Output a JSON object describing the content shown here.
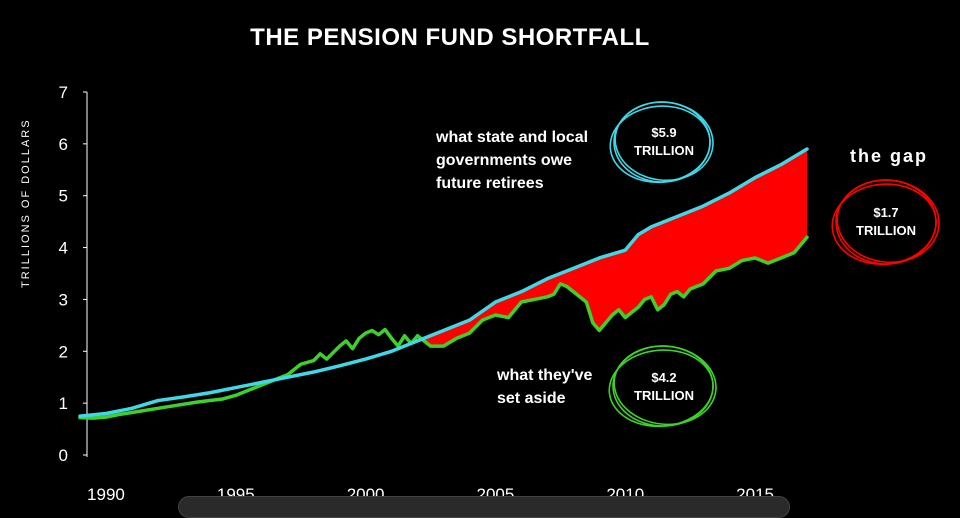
{
  "chart_data": {
    "type": "line",
    "title": "THE PENSION FUND SHORTFALL",
    "xlabel": "",
    "ylabel": "TRILLIONS OF DOLLARS",
    "xlim": [
      1989.0,
      2017.5
    ],
    "ylim": [
      0,
      7
    ],
    "x_ticks": [
      "1990",
      "1995",
      "2000",
      "2005",
      "2010",
      "2015"
    ],
    "y_ticks": [
      "0",
      "1",
      "2",
      "3",
      "4",
      "5",
      "6",
      "7"
    ],
    "grid": false,
    "colors": {
      "owed": "#3fd8e6",
      "set_aside": "#3fd12b",
      "gap": "#ff0000"
    },
    "series": [
      {
        "key": "owed",
        "x": [
          1989.0,
          1990.0,
          1991.0,
          1992.0,
          1993.0,
          1994.0,
          1995.0,
          1996.0,
          1997.0,
          1998.0,
          1999.0,
          2000.0,
          2001.0,
          2002.0,
          2003.0,
          2004.0,
          2005.0,
          2006.0,
          2007.0,
          2008.0,
          2009.0,
          2010.0,
          2010.5,
          2011.0,
          2012.0,
          2013.0,
          2014.0,
          2015.0,
          2016.0,
          2017.0
        ],
        "values": [
          0.75,
          0.8,
          0.9,
          1.05,
          1.12,
          1.2,
          1.3,
          1.4,
          1.5,
          1.6,
          1.72,
          1.85,
          2.0,
          2.2,
          2.4,
          2.6,
          2.95,
          3.15,
          3.4,
          3.6,
          3.8,
          3.95,
          4.25,
          4.4,
          4.6,
          4.8,
          5.05,
          5.35,
          5.6,
          5.9
        ]
      },
      {
        "key": "set_aside",
        "x": [
          1989.0,
          1989.5,
          1990.0,
          1990.5,
          1991.0,
          1992.0,
          1993.0,
          1993.5,
          1994.0,
          1994.5,
          1995.0,
          1995.5,
          1996.0,
          1996.5,
          1997.0,
          1997.5,
          1998.0,
          1998.25,
          1998.5,
          1999.0,
          1999.25,
          1999.5,
          1999.75,
          2000.0,
          2000.25,
          2000.5,
          2000.75,
          2001.0,
          2001.25,
          2001.5,
          2001.75,
          2002.0,
          2002.25,
          2002.5,
          2003.0,
          2003.5,
          2004.0,
          2004.5,
          2005.0,
          2005.5,
          2006.0,
          2006.5,
          2007.0,
          2007.25,
          2007.5,
          2007.75,
          2008.0,
          2008.25,
          2008.5,
          2008.75,
          2009.0,
          2009.25,
          2009.5,
          2009.75,
          2010.0,
          2010.25,
          2010.5,
          2010.75,
          2011.0,
          2011.25,
          2011.5,
          2011.75,
          2012.0,
          2012.25,
          2012.5,
          2013.0,
          2013.5,
          2014.0,
          2014.5,
          2015.0,
          2015.5,
          2016.0,
          2016.5,
          2017.0
        ],
        "values": [
          0.72,
          0.71,
          0.73,
          0.78,
          0.82,
          0.9,
          0.98,
          1.02,
          1.05,
          1.08,
          1.15,
          1.25,
          1.35,
          1.45,
          1.55,
          1.75,
          1.82,
          1.95,
          1.85,
          2.1,
          2.2,
          2.05,
          2.25,
          2.35,
          2.4,
          2.32,
          2.42,
          2.25,
          2.1,
          2.3,
          2.15,
          2.3,
          2.2,
          2.1,
          2.1,
          2.25,
          2.35,
          2.6,
          2.7,
          2.65,
          2.95,
          3.0,
          3.05,
          3.1,
          3.3,
          3.25,
          3.15,
          3.05,
          2.95,
          2.55,
          2.4,
          2.55,
          2.7,
          2.8,
          2.65,
          2.75,
          2.85,
          3.0,
          3.05,
          2.8,
          2.9,
          3.1,
          3.15,
          3.05,
          3.2,
          3.3,
          3.55,
          3.6,
          3.75,
          3.8,
          3.7,
          3.8,
          3.9,
          4.2
        ]
      }
    ],
    "gap_range": [
      2002.0,
      2017.0
    ],
    "annotations": {
      "owe_label": "what state and local governments owe future retirees",
      "owe_amount": "$5.9",
      "owe_unit": "TRILLION",
      "aside_label": "what they've set aside",
      "aside_amount": "$4.2",
      "aside_unit": "TRILLION",
      "gap_label": "the gap",
      "gap_amount": "$1.7",
      "gap_unit": "TRILLION"
    }
  }
}
